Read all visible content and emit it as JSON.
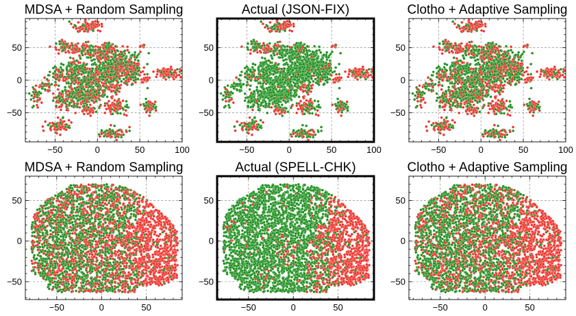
{
  "colors": {
    "red": "#f0302a",
    "green": "#1d8f1d",
    "edge": "#ffffff"
  },
  "chart_data": [
    {
      "type": "scatter",
      "dataset": "JSON-FIX",
      "title": "MDSA + Random Sampling",
      "highlighted": false,
      "xlim": [
        -85,
        100
      ],
      "ylim": [
        -95,
        95
      ],
      "xticks": [
        -50,
        0,
        50,
        100
      ],
      "yticks": [
        -50,
        0,
        50
      ],
      "grid": true,
      "legend": "none",
      "mix": "random"
    },
    {
      "type": "scatter",
      "dataset": "JSON-FIX",
      "title": "Actual (JSON-FIX)",
      "highlighted": true,
      "xlim": [
        -85,
        100
      ],
      "ylim": [
        -95,
        95
      ],
      "xticks": [
        -50,
        0,
        50,
        100
      ],
      "yticks": [
        -50,
        0,
        50
      ],
      "grid": true,
      "legend": "none",
      "mix": "actual"
    },
    {
      "type": "scatter",
      "dataset": "JSON-FIX",
      "title": "Clotho + Adaptive Sampling",
      "highlighted": false,
      "xlim": [
        -85,
        100
      ],
      "ylim": [
        -95,
        95
      ],
      "xticks": [
        -50,
        0,
        50,
        100
      ],
      "yticks": [
        -50,
        0,
        50
      ],
      "grid": true,
      "legend": "none",
      "mix": "adaptive"
    },
    {
      "type": "scatter",
      "dataset": "SPELL-CHK",
      "title": "MDSA + Random Sampling",
      "highlighted": false,
      "xlim": [
        -85,
        90
      ],
      "ylim": [
        -72,
        80
      ],
      "xticks": [
        -50,
        0,
        50
      ],
      "yticks": [
        -50,
        0,
        50
      ],
      "grid": true,
      "legend": "none",
      "mix": "random"
    },
    {
      "type": "scatter",
      "dataset": "SPELL-CHK",
      "title": "Actual (SPELL-CHK)",
      "highlighted": true,
      "xlim": [
        -85,
        90
      ],
      "ylim": [
        -72,
        80
      ],
      "xticks": [
        -50,
        0,
        50
      ],
      "yticks": [
        -50,
        0,
        50
      ],
      "grid": true,
      "legend": "none",
      "mix": "actual"
    },
    {
      "type": "scatter",
      "dataset": "SPELL-CHK",
      "title": "Clotho + Adaptive Sampling",
      "highlighted": false,
      "xlim": [
        -85,
        90
      ],
      "ylim": [
        -72,
        80
      ],
      "xticks": [
        -50,
        0,
        50
      ],
      "yticks": [
        -50,
        0,
        50
      ],
      "grid": true,
      "legend": "none",
      "mix": "adaptive"
    }
  ]
}
